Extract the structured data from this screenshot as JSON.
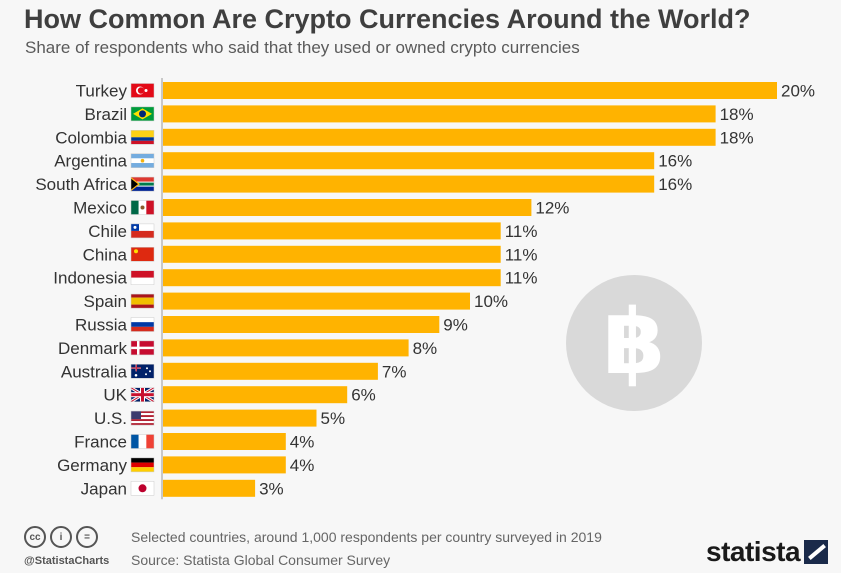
{
  "header": {
    "title": "How Common Are Crypto Currencies Around the World?",
    "subtitle": "Share of respondents who said that they used or owned crypto currencies"
  },
  "footer": {
    "handle": "@StatistaCharts",
    "note": "Selected countries, around 1,000 respondents per country surveyed in 2019",
    "source": "Source: Statista Global Consumer Survey",
    "brand": "statista",
    "cc_icons": [
      "creative-commons-icon",
      "attribution-icon",
      "no-derivatives-icon"
    ]
  },
  "colors": {
    "bar": "#ffb300",
    "axis": "#999999",
    "bitcoin_circle": "#d9d9d9"
  },
  "decoration": {
    "bitcoin_symbol": "bitcoin-icon"
  },
  "chart_data": {
    "type": "bar",
    "orientation": "horizontal",
    "unit": "%",
    "categories": [
      "Turkey",
      "Brazil",
      "Colombia",
      "Argentina",
      "South Africa",
      "Mexico",
      "Chile",
      "China",
      "Indonesia",
      "Spain",
      "Russia",
      "Denmark",
      "Australia",
      "UK",
      "U.S.",
      "France",
      "Germany",
      "Japan"
    ],
    "values": [
      20,
      18,
      18,
      16,
      16,
      12,
      11,
      11,
      11,
      10,
      9,
      8,
      7,
      6,
      5,
      4,
      4,
      3
    ],
    "value_labels": [
      "20%",
      "18%",
      "18%",
      "16%",
      "16%",
      "12%",
      "11%",
      "11%",
      "11%",
      "10%",
      "9%",
      "8%",
      "7%",
      "6%",
      "5%",
      "4%",
      "4%",
      "3%"
    ],
    "xlim": [
      0,
      20
    ],
    "grid": false,
    "flags": [
      "turkey",
      "brazil",
      "colombia",
      "argentina",
      "south-africa",
      "mexico",
      "chile",
      "china",
      "indonesia",
      "spain",
      "russia",
      "denmark",
      "australia",
      "uk",
      "us",
      "france",
      "germany",
      "japan"
    ]
  }
}
